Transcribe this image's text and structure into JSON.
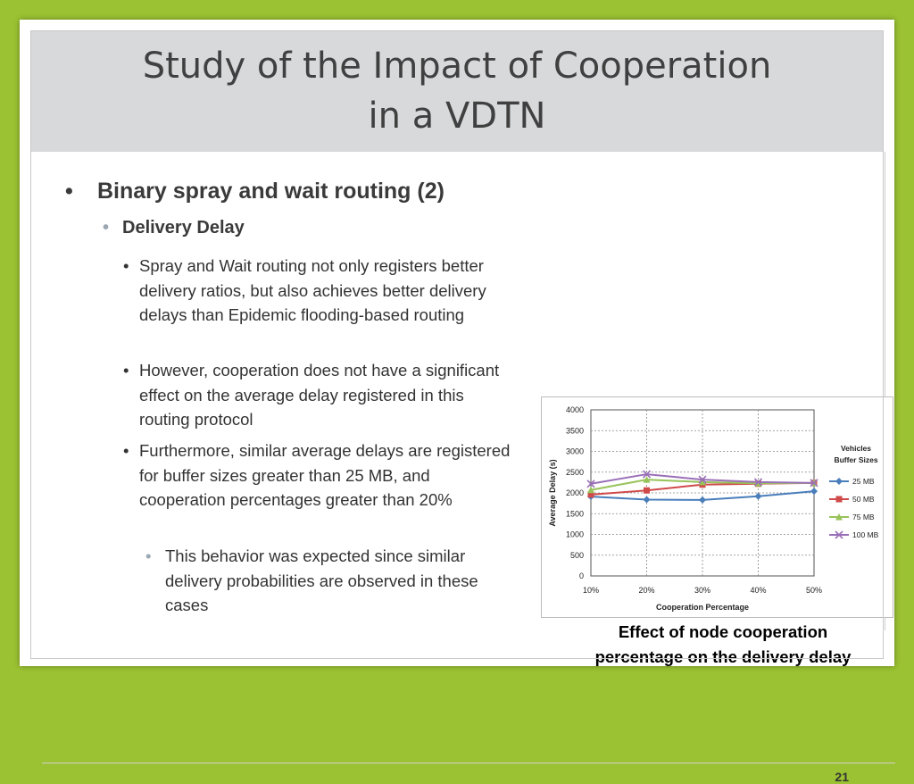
{
  "slide": {
    "title_line1": "Study of the Impact of Cooperation",
    "title_line2": "in a VDTN",
    "bullet_l1": "Binary spray and wait routing (2)",
    "bullet_l2": "Delivery Delay",
    "points": [
      "Spray and Wait routing not only registers better delivery ratios, but also achieves better delivery delays than Epidemic flooding-based routing",
      "However, cooperation does not have a significant effect on the average delay registered in this routing protocol",
      "Furthermore, similar average delays are registered for buffer sizes greater than 25 MB, and cooperation percentages greater than 20%"
    ],
    "sub_point": "This behavior was expected since similar delivery probabilities are observed in these cases",
    "caption_line1": "Effect of node cooperation",
    "caption_line2": "percentage on the delivery delay",
    "page_number": "21",
    "bullet_glyph": "•"
  },
  "colors": {
    "background": "#9bc232",
    "title_band": "#d8d9db"
  },
  "chart_data": {
    "type": "line",
    "x": [
      "10%",
      "20%",
      "30%",
      "40%",
      "50%"
    ],
    "xlabel": "Cooperation Percentage",
    "ylabel": "Average Delay (s)",
    "ylim": [
      0,
      4000
    ],
    "yticks": [
      0,
      500,
      1000,
      1500,
      2000,
      2500,
      3000,
      3500,
      4000
    ],
    "grid": true,
    "legend_title_line1": "Vehicles",
    "legend_title_line2": "Buffer Sizes",
    "legend_position": "right",
    "series": [
      {
        "name": "25 MB",
        "color": "#4a7ebb",
        "marker": "diamond",
        "values": [
          1910,
          1840,
          1830,
          1920,
          2040
        ]
      },
      {
        "name": "50 MB",
        "color": "#d04a4a",
        "marker": "square",
        "values": [
          1960,
          2060,
          2200,
          2220,
          2240
        ]
      },
      {
        "name": "75 MB",
        "color": "#98c35a",
        "marker": "triangle",
        "values": [
          2070,
          2320,
          2260,
          2230,
          2240
        ]
      },
      {
        "name": "100 MB",
        "color": "#9a6fb8",
        "marker": "x",
        "values": [
          2220,
          2450,
          2320,
          2260,
          2240
        ]
      }
    ]
  }
}
